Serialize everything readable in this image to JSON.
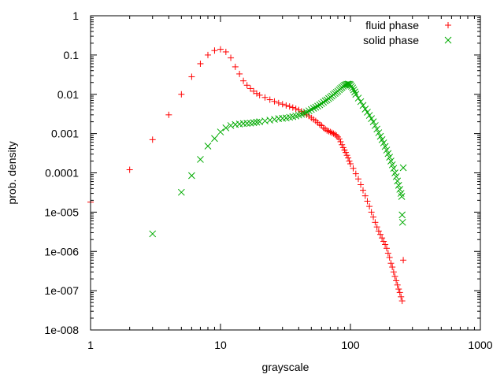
{
  "chart_data": {
    "type": "scatter",
    "title": "",
    "xlabel": "grayscale",
    "ylabel": "prob. density",
    "xscale": "log",
    "yscale": "log",
    "xlim": [
      1,
      1000
    ],
    "ylim": [
      1e-08,
      1
    ],
    "grid": false,
    "legend_position": "top-right",
    "x_ticks": [
      {
        "value": 1,
        "label": "1"
      },
      {
        "value": 10,
        "label": "10"
      },
      {
        "value": 100,
        "label": "100"
      },
      {
        "value": 1000,
        "label": "1000"
      }
    ],
    "y_ticks": [
      {
        "value": 1,
        "label": "1"
      },
      {
        "value": 0.1,
        "label": "0.1"
      },
      {
        "value": 0.01,
        "label": "0.01"
      },
      {
        "value": 0.001,
        "label": "0.001"
      },
      {
        "value": 0.0001,
        "label": "0.0001"
      },
      {
        "value": 1e-05,
        "label": "1e-005"
      },
      {
        "value": 1e-06,
        "label": "1e-006"
      },
      {
        "value": 1e-07,
        "label": "1e-007"
      },
      {
        "value": 1e-08,
        "label": "1e-008"
      }
    ],
    "series": [
      {
        "name": "fluid phase",
        "marker": "plus",
        "color": "#ff0000",
        "points": [
          [
            1,
            1.8e-05
          ],
          [
            2,
            0.00012
          ],
          [
            3,
            0.0007
          ],
          [
            4,
            0.003
          ],
          [
            5,
            0.01
          ],
          [
            6,
            0.028
          ],
          [
            7,
            0.06
          ],
          [
            8,
            0.1
          ],
          [
            9,
            0.13
          ],
          [
            10,
            0.14
          ],
          [
            11,
            0.12
          ],
          [
            12,
            0.085
          ],
          [
            13,
            0.05
          ],
          [
            14,
            0.033
          ],
          [
            15,
            0.022
          ],
          [
            16,
            0.017
          ],
          [
            17,
            0.014
          ],
          [
            18,
            0.012
          ],
          [
            19,
            0.0105
          ],
          [
            20,
            0.0095
          ],
          [
            22,
            0.0083
          ],
          [
            24,
            0.0073
          ],
          [
            26,
            0.0066
          ],
          [
            28,
            0.006
          ],
          [
            30,
            0.0056
          ],
          [
            32,
            0.0052
          ],
          [
            34,
            0.0049
          ],
          [
            36,
            0.0046
          ],
          [
            38,
            0.0043
          ],
          [
            40,
            0.004
          ],
          [
            42,
            0.0037
          ],
          [
            44,
            0.0034
          ],
          [
            46,
            0.003
          ],
          [
            48,
            0.0028
          ],
          [
            50,
            0.0025
          ],
          [
            52,
            0.0023
          ],
          [
            54,
            0.0021
          ],
          [
            56,
            0.0019
          ],
          [
            58,
            0.0017
          ],
          [
            60,
            0.0016
          ],
          [
            62,
            0.0014
          ],
          [
            64,
            0.0013
          ],
          [
            66,
            0.0012
          ],
          [
            68,
            0.00115
          ],
          [
            70,
            0.0011
          ],
          [
            72,
            0.00105
          ],
          [
            74,
            0.001
          ],
          [
            76,
            0.00095
          ],
          [
            78,
            0.0009
          ],
          [
            80,
            0.00082
          ],
          [
            82,
            0.00073
          ],
          [
            84,
            0.00062
          ],
          [
            86,
            0.00052
          ],
          [
            88,
            0.00044
          ],
          [
            90,
            0.00038
          ],
          [
            92,
            0.00033
          ],
          [
            94,
            0.00028
          ],
          [
            96,
            0.00024
          ],
          [
            98,
            0.0002
          ],
          [
            100,
            0.00017
          ],
          [
            105,
            0.00013
          ],
          [
            110,
            9.5e-05
          ],
          [
            115,
            7e-05
          ],
          [
            120,
            5e-05
          ],
          [
            125,
            3.6e-05
          ],
          [
            130,
            2.6e-05
          ],
          [
            135,
            1.9e-05
          ],
          [
            140,
            1.4e-05
          ],
          [
            145,
            1e-05
          ],
          [
            150,
            7.5e-06
          ],
          [
            155,
            5.5e-06
          ],
          [
            160,
            4.2e-06
          ],
          [
            165,
            3.3e-06
          ],
          [
            170,
            2.7e-06
          ],
          [
            175,
            2.2e-06
          ],
          [
            180,
            1.8e-06
          ],
          [
            185,
            1.5e-06
          ],
          [
            190,
            1.2e-06
          ],
          [
            195,
            9e-07
          ],
          [
            200,
            7e-07
          ],
          [
            205,
            5e-07
          ],
          [
            210,
            4e-07
          ],
          [
            215,
            3e-07
          ],
          [
            220,
            2.3e-07
          ],
          [
            225,
            1.8e-07
          ],
          [
            230,
            1.4e-07
          ],
          [
            235,
            1.1e-07
          ],
          [
            240,
            9e-08
          ],
          [
            245,
            7e-08
          ],
          [
            250,
            5.5e-08
          ],
          [
            255,
            6e-07
          ]
        ]
      },
      {
        "name": "solid phase",
        "marker": "cross",
        "color": "#00aa00",
        "points": [
          [
            3,
            2.8e-06
          ],
          [
            5,
            3.2e-05
          ],
          [
            6,
            8.5e-05
          ],
          [
            7,
            0.00022
          ],
          [
            8,
            0.00048
          ],
          [
            9,
            0.00075
          ],
          [
            10,
            0.0011
          ],
          [
            11,
            0.0014
          ],
          [
            12,
            0.0016
          ],
          [
            13,
            0.0017
          ],
          [
            14,
            0.00175
          ],
          [
            15,
            0.0018
          ],
          [
            16,
            0.00182
          ],
          [
            17,
            0.00185
          ],
          [
            18,
            0.0019
          ],
          [
            19,
            0.00195
          ],
          [
            20,
            0.002
          ],
          [
            22,
            0.0021
          ],
          [
            24,
            0.0022
          ],
          [
            26,
            0.0023
          ],
          [
            28,
            0.0024
          ],
          [
            30,
            0.00245
          ],
          [
            32,
            0.0025
          ],
          [
            34,
            0.0026
          ],
          [
            36,
            0.0027
          ],
          [
            38,
            0.0028
          ],
          [
            40,
            0.00295
          ],
          [
            42,
            0.0031
          ],
          [
            44,
            0.0033
          ],
          [
            46,
            0.0035
          ],
          [
            48,
            0.0038
          ],
          [
            50,
            0.0041
          ],
          [
            52,
            0.0044
          ],
          [
            54,
            0.0047
          ],
          [
            56,
            0.005
          ],
          [
            58,
            0.0054
          ],
          [
            60,
            0.0058
          ],
          [
            62,
            0.0063
          ],
          [
            64,
            0.0068
          ],
          [
            66,
            0.0072
          ],
          [
            68,
            0.0078
          ],
          [
            70,
            0.0084
          ],
          [
            72,
            0.009
          ],
          [
            74,
            0.0098
          ],
          [
            76,
            0.0105
          ],
          [
            78,
            0.0112
          ],
          [
            80,
            0.012
          ],
          [
            82,
            0.013
          ],
          [
            84,
            0.014
          ],
          [
            86,
            0.015
          ],
          [
            88,
            0.016
          ],
          [
            90,
            0.017
          ],
          [
            92,
            0.0175
          ],
          [
            94,
            0.018
          ],
          [
            96,
            0.0182
          ],
          [
            98,
            0.018
          ],
          [
            100,
            0.0175
          ],
          [
            102,
            0.016
          ],
          [
            104,
            0.0145
          ],
          [
            106,
            0.013
          ],
          [
            108,
            0.0115
          ],
          [
            110,
            0.01
          ],
          [
            115,
            0.008
          ],
          [
            120,
            0.0065
          ],
          [
            125,
            0.0052
          ],
          [
            130,
            0.0042
          ],
          [
            135,
            0.0035
          ],
          [
            140,
            0.0029
          ],
          [
            145,
            0.0024
          ],
          [
            150,
            0.002
          ],
          [
            155,
            0.0016
          ],
          [
            160,
            0.0013
          ],
          [
            165,
            0.00105
          ],
          [
            170,
            0.00085
          ],
          [
            175,
            0.0007
          ],
          [
            180,
            0.00058
          ],
          [
            185,
            0.00047
          ],
          [
            190,
            0.00038
          ],
          [
            195,
            0.00031
          ],
          [
            200,
            0.00025
          ],
          [
            205,
            0.0002
          ],
          [
            210,
            0.00016
          ],
          [
            215,
            0.00013
          ],
          [
            220,
            0.0001
          ],
          [
            225,
            8e-05
          ],
          [
            230,
            6.2e-05
          ],
          [
            235,
            4.8e-05
          ],
          [
            240,
            3.8e-05
          ],
          [
            245,
            3e-05
          ],
          [
            248,
            2.5e-05
          ],
          [
            250,
            8.5e-06
          ],
          [
            252,
            5.5e-06
          ],
          [
            255,
            0.000135
          ]
        ]
      }
    ]
  }
}
